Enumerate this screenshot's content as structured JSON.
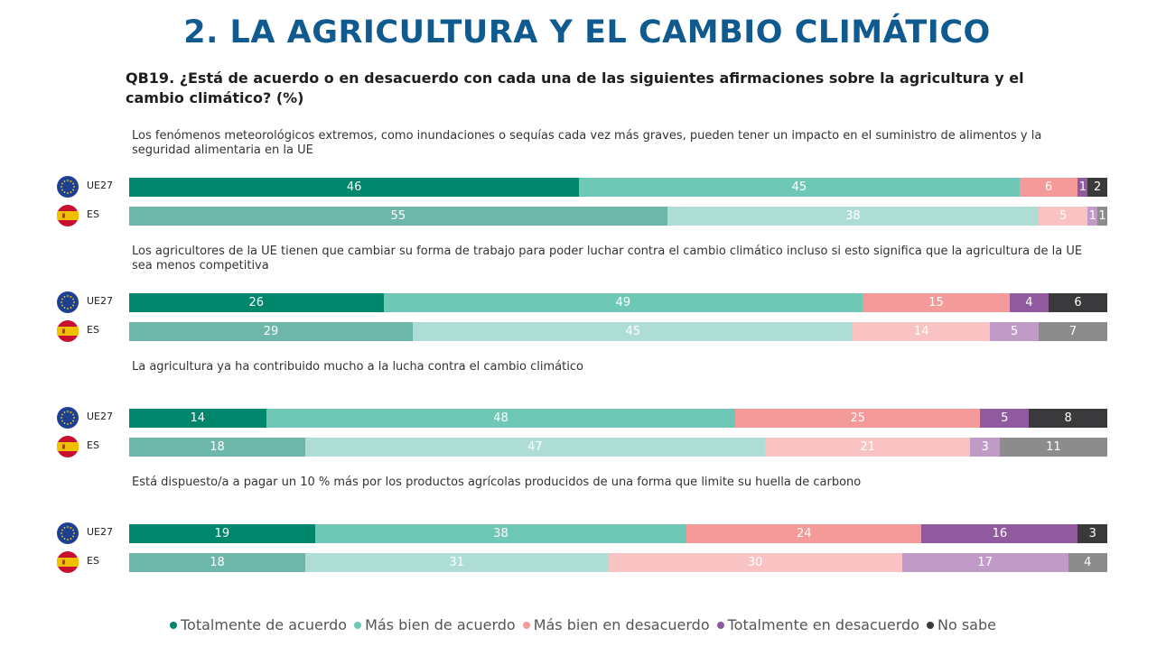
{
  "title": "2. LA AGRICULTURA Y EL CAMBIO CLIMÁTICO",
  "question": "QB19. ¿Está de acuerdo o en desacuerdo con cada una de las siguientes afirmaciones sobre la agricultura y el cambio climático? (%)",
  "colors": {
    "ue27": [
      "#00866b",
      "#6fc8b5",
      "#f49a99",
      "#915a9e",
      "#3a3a3c"
    ],
    "es": [
      "#6cb7a9",
      "#aeddd5",
      "#f9c3c3",
      "#c09bc8",
      "#8c8c8c"
    ]
  },
  "chart_data": {
    "type": "bar",
    "orientation": "horizontal-stacked",
    "legend_position": "bottom",
    "series_names": [
      "Totalmente de acuerdo",
      "Más bien de acuerdo",
      "Más bien en desacuerdo",
      "Totalmente en desacuerdo",
      "No sabe"
    ],
    "groups": [
      {
        "statement": "Los fenómenos meteorológicos extremos, como inundaciones o sequías cada vez más graves, pueden tener un impacto en el suministro de alimentos y la seguridad alimentaria en la UE",
        "rows": [
          {
            "label": "UE27",
            "flag": "eu-flag-icon",
            "values": [
              46,
              45,
              6,
              1,
              2
            ]
          },
          {
            "label": "ES",
            "flag": "spain-flag-icon",
            "values": [
              55,
              38,
              5,
              1,
              1
            ]
          }
        ]
      },
      {
        "statement": "Los agricultores de la UE tienen que cambiar su forma de trabajo para poder luchar contra el cambio climático incluso si esto significa que la agricultura de la UE sea menos competitiva",
        "rows": [
          {
            "label": "UE27",
            "flag": "eu-flag-icon",
            "values": [
              26,
              49,
              15,
              4,
              6
            ]
          },
          {
            "label": "ES",
            "flag": "spain-flag-icon",
            "values": [
              29,
              45,
              14,
              5,
              7
            ]
          }
        ]
      },
      {
        "statement": "La agricultura ya ha contribuido mucho a la lucha contra el cambio climático",
        "rows": [
          {
            "label": "UE27",
            "flag": "eu-flag-icon",
            "values": [
              14,
              48,
              25,
              5,
              8
            ]
          },
          {
            "label": "ES",
            "flag": "spain-flag-icon",
            "values": [
              18,
              47,
              21,
              3,
              11
            ]
          }
        ]
      },
      {
        "statement": "Está dispuesto/a a pagar un 10 % más por los productos agrícolas producidos de una forma que limite su huella de carbono",
        "rows": [
          {
            "label": "UE27",
            "flag": "eu-flag-icon",
            "values": [
              19,
              38,
              24,
              16,
              3
            ]
          },
          {
            "label": "ES",
            "flag": "spain-flag-icon",
            "values": [
              18,
              31,
              30,
              17,
              4
            ]
          }
        ]
      }
    ]
  }
}
